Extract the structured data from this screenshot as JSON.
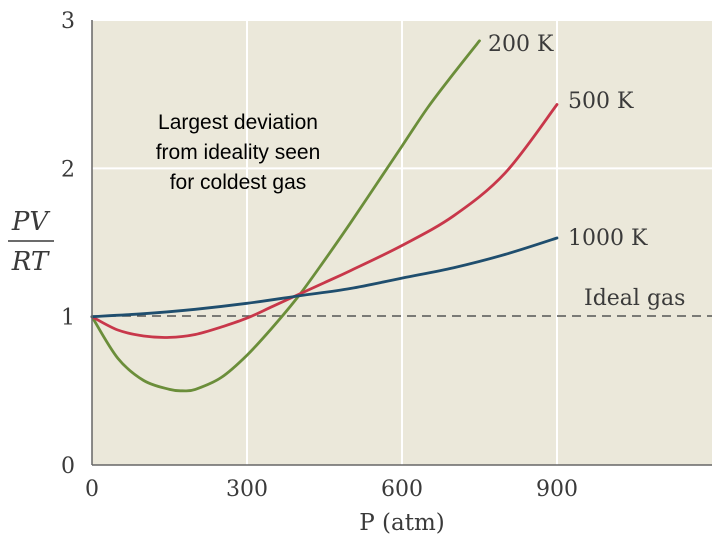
{
  "chart_data": {
    "type": "line",
    "xlabel": "P (atm)",
    "ylabel_num": "PV",
    "ylabel_den": "RT",
    "xlim": [
      0,
      1200
    ],
    "ylim": [
      0,
      3
    ],
    "xticks": [
      0,
      300,
      600,
      900
    ],
    "yticks": [
      0,
      1,
      2,
      3
    ],
    "tick_labels_x": [
      "0",
      "300",
      "600",
      "900"
    ],
    "tick_labels_y": [
      "0",
      "1",
      "2",
      "3"
    ],
    "grid": true,
    "annotation": [
      "Largest deviation",
      "from ideality seen",
      "for coldest gas"
    ],
    "reference_line": {
      "label": "Ideal gas",
      "y": 1
    },
    "series": [
      {
        "name": "200 K",
        "color": "#6b8e3a",
        "x": [
          0,
          50,
          100,
          150,
          175,
          200,
          250,
          300,
          350,
          400,
          450,
          500,
          550,
          600,
          650,
          700,
          750
        ],
        "y": [
          1.0,
          0.72,
          0.57,
          0.51,
          0.5,
          0.51,
          0.59,
          0.74,
          0.93,
          1.14,
          1.38,
          1.63,
          1.89,
          2.15,
          2.41,
          2.64,
          2.86
        ]
      },
      {
        "name": "500 K",
        "color": "#c8374a",
        "x": [
          0,
          50,
          100,
          150,
          200,
          250,
          300,
          350,
          400,
          450,
          500,
          600,
          700,
          800,
          900
        ],
        "y": [
          1.0,
          0.91,
          0.87,
          0.86,
          0.88,
          0.93,
          0.99,
          1.07,
          1.15,
          1.23,
          1.31,
          1.48,
          1.68,
          1.97,
          2.43
        ]
      },
      {
        "name": "1000 K",
        "color": "#1f4e6e",
        "x": [
          0,
          100,
          200,
          300,
          400,
          500,
          600,
          700,
          800,
          900
        ],
        "y": [
          1.0,
          1.02,
          1.05,
          1.09,
          1.14,
          1.19,
          1.26,
          1.33,
          1.42,
          1.53
        ]
      }
    ]
  }
}
